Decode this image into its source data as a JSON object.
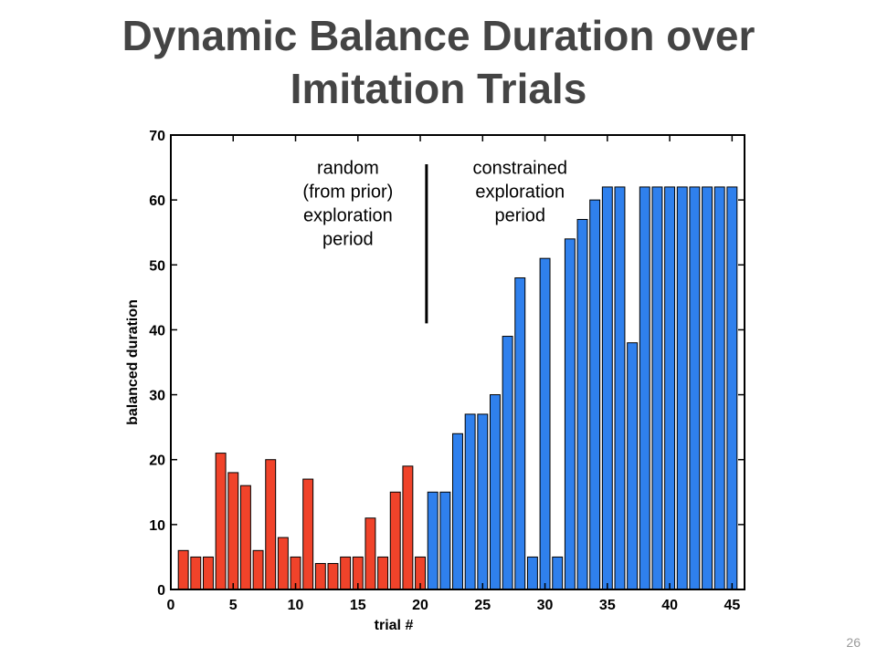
{
  "slide": {
    "title_lines": [
      "Dynamic Balance Duration over",
      "Imitation Trials"
    ],
    "page_number": "26"
  },
  "chart_data": {
    "type": "bar",
    "xlabel": "trial #",
    "ylabel": "balanced duration",
    "xlim": [
      0,
      46
    ],
    "ylim": [
      0,
      70
    ],
    "x_ticks": [
      0,
      5,
      10,
      15,
      20,
      25,
      30,
      35,
      40,
      45
    ],
    "y_ticks": [
      0,
      10,
      20,
      30,
      40,
      50,
      60,
      70
    ],
    "series": [
      {
        "color": "#f0432a",
        "x": [
          1,
          2,
          3,
          4,
          5,
          6,
          7,
          8,
          9,
          10,
          11,
          12,
          13,
          14,
          15,
          16,
          17,
          18,
          19,
          20
        ],
        "values": [
          6,
          5,
          5,
          21,
          18,
          16,
          6,
          20,
          8,
          5,
          17,
          4,
          4,
          5,
          5,
          11,
          5,
          15,
          19,
          5
        ]
      },
      {
        "color": "#2f80ed",
        "x": [
          21,
          22,
          23,
          24,
          25,
          26,
          27,
          28,
          29,
          30,
          31,
          32,
          33,
          34,
          35,
          36,
          37,
          38,
          39,
          40,
          41,
          42,
          43,
          44,
          45
        ],
        "values": [
          15,
          15,
          24,
          27,
          27,
          30,
          39,
          48,
          5,
          51,
          5,
          54,
          57,
          60,
          62,
          62,
          38,
          62,
          62,
          62,
          62,
          62,
          62,
          62,
          62
        ]
      }
    ],
    "divider": {
      "x": 20.5,
      "y_from": 41,
      "y_to": 65.5
    },
    "annotations": [
      {
        "lines": [
          "random",
          "(from prior)",
          "exploration",
          "period"
        ],
        "x": 14.2,
        "y": 64
      },
      {
        "lines": [
          "constrained",
          "exploration",
          "period"
        ],
        "x": 28,
        "y": 64
      }
    ],
    "grid": false
  }
}
